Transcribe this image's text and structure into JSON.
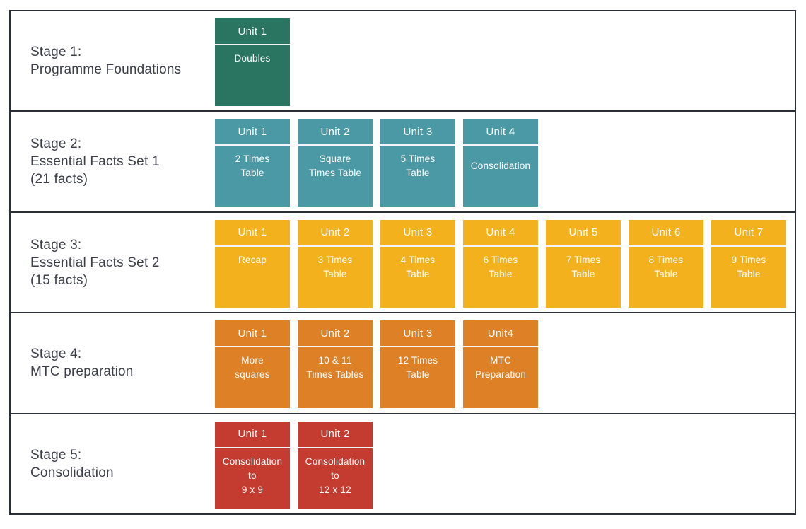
{
  "colors": {
    "stage1_card": "#2A7462",
    "stage2_card": "#4A99A4",
    "stage3_card": "#F3B11E",
    "stage4_card": "#DD8026",
    "stage5_card": "#C43B30",
    "table_border": "#2B2F3A",
    "label_text": "#3C3F49",
    "card_text": "#FFFFFF"
  },
  "stages": [
    {
      "label": "Stage 1:\nProgramme Foundations",
      "units": [
        {
          "header": "Unit 1",
          "body": "Doubles"
        }
      ]
    },
    {
      "label": "Stage 2:\nEssential Facts Set 1\n(21 facts)",
      "units": [
        {
          "header": "Unit 1",
          "body": "2 Times\nTable"
        },
        {
          "header": "Unit 2",
          "body": "Square\nTimes Table"
        },
        {
          "header": "Unit 3",
          "body": "5 Times\nTable"
        },
        {
          "header": "Unit 4",
          "body": "Consolidation"
        }
      ]
    },
    {
      "label": "Stage 3:\nEssential Facts Set 2\n(15 facts)",
      "units": [
        {
          "header": "Unit 1",
          "body": "Recap"
        },
        {
          "header": "Unit 2",
          "body": "3 Times\nTable"
        },
        {
          "header": "Unit 3",
          "body": "4 Times\nTable"
        },
        {
          "header": "Unit 4",
          "body": "6 Times\nTable"
        },
        {
          "header": "Unit 5",
          "body": "7 Times\nTable"
        },
        {
          "header": "Unit 6",
          "body": "8 Times\nTable"
        },
        {
          "header": "Unit 7",
          "body": "9 Times\nTable"
        }
      ]
    },
    {
      "label": "Stage 4:\nMTC preparation",
      "units": [
        {
          "header": "Unit 1",
          "body": "More\nsquares"
        },
        {
          "header": "Unit 2",
          "body": "10 & 11\nTimes Tables"
        },
        {
          "header": "Unit 3",
          "body": "12 Times\nTable"
        },
        {
          "header": "Unit4",
          "body": "MTC\nPreparation"
        }
      ]
    },
    {
      "label": "Stage 5:\nConsolidation",
      "units": [
        {
          "header": "Unit 1",
          "body": "Consolidation\nto\n9 x 9"
        },
        {
          "header": "Unit 2",
          "body": "Consolidation\nto\n12 x 12"
        }
      ]
    }
  ]
}
